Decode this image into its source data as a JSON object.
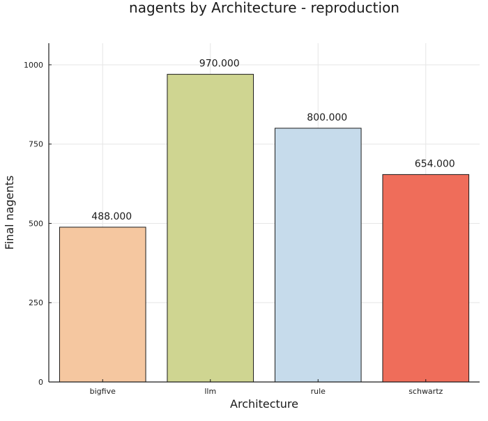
{
  "chart_data": {
    "type": "bar",
    "title": "nagents by Architecture - reproduction",
    "xlabel": "Architecture",
    "ylabel": "Final nagents",
    "categories": [
      "bigfive",
      "llm",
      "rule",
      "schwartz"
    ],
    "values": [
      488,
      970,
      800,
      654
    ],
    "value_labels": [
      "488.000",
      "970.000",
      "800.000",
      "654.000"
    ],
    "colors": [
      "#f5c7a0",
      "#cfd591",
      "#c6dbeb",
      "#ef6d5a"
    ],
    "ylim": [
      0,
      1068
    ],
    "yticks": [
      0,
      250,
      500,
      750,
      1000
    ],
    "ytick_labels": [
      "0",
      "250",
      "500",
      "750",
      "1000"
    ],
    "grid": true,
    "legend": "none"
  }
}
